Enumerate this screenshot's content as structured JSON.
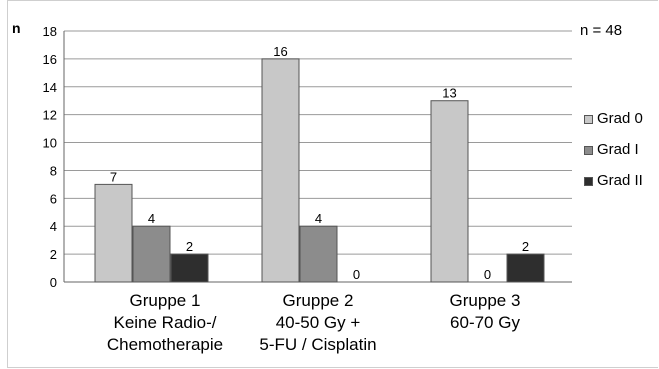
{
  "chart_data": {
    "type": "bar",
    "ylabel": "n",
    "annotation": "n = 48",
    "ylim": [
      0,
      18
    ],
    "yticks": [
      0,
      2,
      4,
      6,
      8,
      10,
      12,
      14,
      16,
      18
    ],
    "grid": true,
    "legend_position": "right",
    "categories": [
      [
        "Gruppe 1",
        "Keine Radio-/",
        "Chemotherapie"
      ],
      [
        "Gruppe 2",
        "40-50 Gy +",
        "5-FU / Cisplatin"
      ],
      [
        "Gruppe 3",
        "60-70 Gy"
      ]
    ],
    "series": [
      {
        "name": "Grad 0",
        "color": "#c8c8c8",
        "values": [
          7,
          16,
          13
        ]
      },
      {
        "name": "Grad I",
        "color": "#8c8c8c",
        "values": [
          4,
          4,
          0
        ]
      },
      {
        "name": "Grad II",
        "color": "#2e2e2e",
        "values": [
          2,
          0,
          2
        ]
      }
    ]
  }
}
